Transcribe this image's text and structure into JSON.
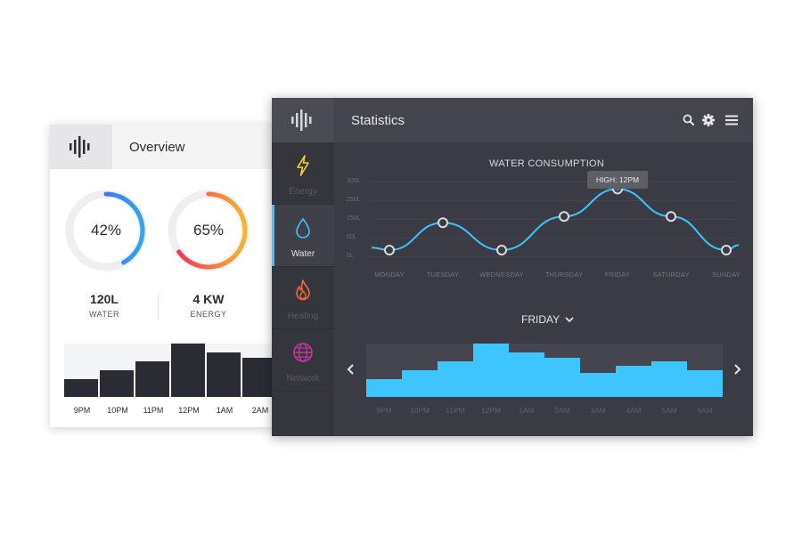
{
  "overview": {
    "title": "Overview",
    "water": {
      "percent_label": "42%",
      "percent": 0.42,
      "value": "120L",
      "label": "WATER"
    },
    "energy": {
      "percent_label": "65%",
      "percent": 0.65,
      "value": "4 KW",
      "label": "ENERGY"
    },
    "bars": [
      {
        "label": "9PM",
        "value": 0.33
      },
      {
        "label": "10PM",
        "value": 0.5
      },
      {
        "label": "11PM",
        "value": 0.67
      },
      {
        "label": "12PM",
        "value": 1.0
      },
      {
        "label": "1AM",
        "value": 0.83
      },
      {
        "label": "2AM",
        "value": 0.73
      }
    ]
  },
  "statistics": {
    "title": "Statistics",
    "icons": {
      "search": "search-icon",
      "settings": "gear-icon",
      "menu": "hamburger-menu-icon"
    },
    "nav": [
      {
        "label": "Energy",
        "icon": "lightning-icon",
        "color": "#f5d320",
        "active": false
      },
      {
        "label": "Water",
        "icon": "water-drop-icon",
        "color": "#3ec4ff",
        "active": true
      },
      {
        "label": "Heating",
        "icon": "flame-icon",
        "color": "#f26b3a",
        "active": false
      },
      {
        "label": "Network",
        "icon": "globe-icon",
        "color": "#c0389e",
        "active": false
      }
    ],
    "chart_data": [
      {
        "type": "line",
        "title": "WATER CONSUMPTION",
        "y_ticks": [
          "300L",
          "250L",
          "150L",
          "50L",
          "0L"
        ],
        "x": [
          "MONDAY",
          "TUESDAY",
          "WEDNESDAY",
          "THURSDAY",
          "FRIDAY",
          "SATURDAY",
          "SUNDAY"
        ],
        "values": [
          25,
          135,
          25,
          160,
          270,
          160,
          25
        ],
        "ylim": [
          0,
          300
        ],
        "annotation": {
          "text": "HIGH: 12PM",
          "at": "FRIDAY"
        },
        "color": "#3ec4ff"
      },
      {
        "type": "bar",
        "selected_day": "FRIDAY",
        "categories": [
          "9PM",
          "10PM",
          "11PM",
          "12PM",
          "1AM",
          "2AM",
          "3AM",
          "4AM",
          "5AM",
          "6AM"
        ],
        "values": [
          0.33,
          0.5,
          0.67,
          1.0,
          0.83,
          0.73,
          0.45,
          0.58,
          0.67,
          0.5
        ],
        "color": "#3ec4ff"
      }
    ]
  }
}
